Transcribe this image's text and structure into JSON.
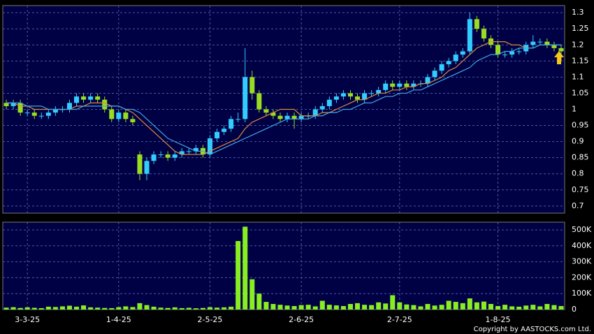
{
  "chart_data": {
    "type": "candlestick",
    "up_color": "#33ccff",
    "down_color": "#99dd22",
    "grid": true,
    "x": [
      null,
      null,
      null,
      "3-3-25",
      null,
      null,
      null,
      null,
      null,
      null,
      null,
      null,
      null,
      null,
      null,
      null,
      "1-4-25",
      null,
      null,
      null,
      null,
      null,
      null,
      null,
      null,
      null,
      null,
      null,
      null,
      "2-5-25",
      null,
      null,
      null,
      null,
      null,
      null,
      null,
      null,
      null,
      null,
      null,
      null,
      "2-6-25",
      null,
      null,
      null,
      null,
      null,
      null,
      null,
      null,
      null,
      null,
      null,
      null,
      null,
      "2-7-25",
      null,
      null,
      null,
      null,
      null,
      null,
      null,
      null,
      null,
      null,
      null,
      null,
      null,
      "1-8-25",
      null,
      null,
      null,
      null,
      null,
      null,
      null,
      null,
      null
    ],
    "open": [
      1.02,
      1.01,
      1.02,
      0.99,
      0.99,
      0.98,
      0.98,
      0.99,
      1.0,
      1.0,
      1.02,
      1.04,
      1.03,
      1.04,
      1.03,
      1.0,
      0.97,
      0.99,
      0.97,
      0.86,
      0.8,
      0.84,
      0.86,
      0.86,
      0.85,
      0.86,
      0.87,
      0.87,
      0.88,
      0.86,
      0.91,
      0.93,
      0.94,
      0.97,
      0.97,
      1.1,
      1.05,
      1.0,
      0.99,
      0.98,
      0.97,
      0.98,
      0.97,
      0.98,
      0.98,
      1.0,
      1.01,
      1.03,
      1.04,
      1.05,
      1.04,
      1.03,
      1.05,
      1.05,
      1.06,
      1.08,
      1.07,
      1.08,
      1.07,
      1.08,
      1.08,
      1.1,
      1.12,
      1.14,
      1.15,
      1.17,
      1.18,
      1.28,
      1.25,
      1.22,
      1.2,
      1.17,
      1.17,
      1.18,
      1.18,
      1.2,
      1.21,
      1.21,
      1.2,
      1.19
    ],
    "high": [
      1.03,
      1.03,
      1.03,
      1.0,
      1.0,
      0.99,
      1.0,
      1.01,
      1.01,
      1.03,
      1.05,
      1.05,
      1.05,
      1.05,
      1.04,
      1.01,
      1.0,
      1.0,
      0.98,
      0.87,
      0.85,
      0.87,
      0.87,
      0.87,
      0.87,
      0.88,
      0.88,
      0.89,
      0.89,
      0.92,
      0.94,
      0.95,
      0.98,
      0.99,
      1.19,
      1.12,
      1.06,
      1.01,
      1.0,
      0.99,
      0.99,
      0.99,
      0.99,
      0.99,
      1.01,
      1.02,
      1.04,
      1.05,
      1.06,
      1.06,
      1.05,
      1.06,
      1.06,
      1.07,
      1.09,
      1.09,
      1.09,
      1.09,
      1.09,
      1.09,
      1.11,
      1.13,
      1.15,
      1.16,
      1.18,
      1.19,
      1.3,
      1.29,
      1.26,
      1.23,
      1.21,
      1.18,
      1.19,
      1.19,
      1.21,
      1.23,
      1.22,
      1.22,
      1.21,
      1.2
    ],
    "low": [
      1.0,
      1.0,
      0.98,
      0.98,
      0.97,
      0.97,
      0.97,
      0.98,
      0.99,
      0.99,
      1.01,
      1.02,
      1.02,
      1.02,
      0.99,
      0.96,
      0.96,
      0.96,
      0.95,
      0.78,
      0.78,
      0.83,
      0.85,
      0.84,
      0.84,
      0.85,
      0.86,
      0.86,
      0.85,
      0.85,
      0.9,
      0.92,
      0.93,
      0.96,
      0.96,
      1.03,
      0.99,
      0.98,
      0.97,
      0.96,
      0.96,
      0.94,
      0.96,
      0.97,
      0.97,
      0.99,
      1.0,
      1.02,
      1.03,
      1.03,
      1.02,
      1.02,
      1.04,
      1.04,
      1.05,
      1.06,
      1.06,
      1.06,
      1.06,
      1.07,
      1.07,
      1.09,
      1.11,
      1.13,
      1.14,
      1.16,
      1.17,
      1.24,
      1.21,
      1.19,
      1.16,
      1.16,
      1.16,
      1.17,
      1.17,
      1.19,
      1.2,
      1.19,
      1.18,
      1.15
    ],
    "close": [
      1.01,
      1.02,
      0.99,
      0.99,
      0.98,
      0.98,
      0.99,
      1.0,
      1.0,
      1.02,
      1.04,
      1.03,
      1.04,
      1.03,
      1.0,
      0.97,
      0.99,
      0.97,
      0.96,
      0.8,
      0.84,
      0.86,
      0.86,
      0.85,
      0.86,
      0.87,
      0.87,
      0.88,
      0.86,
      0.91,
      0.93,
      0.94,
      0.97,
      0.97,
      1.1,
      1.05,
      1.0,
      0.99,
      0.98,
      0.97,
      0.98,
      0.97,
      0.98,
      0.98,
      1.0,
      1.01,
      1.03,
      1.04,
      1.05,
      1.04,
      1.03,
      1.05,
      1.05,
      1.06,
      1.08,
      1.07,
      1.08,
      1.07,
      1.08,
      1.08,
      1.1,
      1.12,
      1.14,
      1.15,
      1.17,
      1.18,
      1.28,
      1.25,
      1.22,
      1.2,
      1.17,
      1.17,
      1.18,
      1.18,
      1.2,
      1.21,
      1.21,
      1.2,
      1.19,
      1.18
    ],
    "lines": [
      {
        "color": "#e08a3c",
        "values": [
          1.02,
          1.02,
          1.01,
          1.01,
          1.0,
          1.0,
          1.0,
          1.0,
          1.0,
          1.0,
          1.01,
          1.01,
          1.02,
          1.02,
          1.02,
          1.01,
          1.01,
          1.0,
          0.99,
          0.97,
          0.95,
          0.93,
          0.91,
          0.89,
          0.87,
          0.86,
          0.86,
          0.86,
          0.86,
          0.87,
          0.88,
          0.89,
          0.9,
          0.91,
          0.94,
          0.96,
          0.97,
          0.98,
          0.99,
          1.0,
          1.0,
          1.0,
          0.98,
          0.98,
          0.98,
          0.99,
          0.99,
          1.0,
          1.01,
          1.02,
          1.03,
          1.03,
          1.04,
          1.05,
          1.05,
          1.06,
          1.06,
          1.07,
          1.07,
          1.08,
          1.08,
          1.09,
          1.1,
          1.12,
          1.13,
          1.15,
          1.17,
          1.19,
          1.2,
          1.21,
          1.21,
          1.21,
          1.2,
          1.2,
          1.19,
          1.19,
          1.2,
          1.2,
          1.2,
          1.2
        ]
      },
      {
        "color": "#3fa9e6",
        "values": [
          1.02,
          1.02,
          1.02,
          1.01,
          1.01,
          1.01,
          1.0,
          1.0,
          1.0,
          1.0,
          1.0,
          1.01,
          1.01,
          1.01,
          1.01,
          1.01,
          1.01,
          1.0,
          1.0,
          0.99,
          0.97,
          0.95,
          0.93,
          0.91,
          0.9,
          0.89,
          0.88,
          0.87,
          0.87,
          0.86,
          0.87,
          0.88,
          0.89,
          0.9,
          0.91,
          0.92,
          0.93,
          0.94,
          0.95,
          0.96,
          0.97,
          0.97,
          0.97,
          0.97,
          0.98,
          0.98,
          0.99,
          0.99,
          1.0,
          1.0,
          1.01,
          1.02,
          1.02,
          1.03,
          1.04,
          1.04,
          1.05,
          1.05,
          1.06,
          1.06,
          1.07,
          1.08,
          1.09,
          1.1,
          1.11,
          1.12,
          1.13,
          1.15,
          1.16,
          1.17,
          1.17,
          1.18,
          1.18,
          1.19,
          1.19,
          1.19,
          1.2,
          1.2,
          1.2,
          1.2
        ]
      }
    ],
    "ylim": [
      0.678,
      1.322
    ],
    "yticks": [
      0.7,
      0.75,
      0.8,
      0.85,
      0.9,
      0.95,
      1,
      1.05,
      1.1,
      1.15,
      1.2,
      1.25,
      1.3
    ],
    "volume": {
      "color": "#88ee22",
      "values": [
        12000,
        15000,
        10000,
        14000,
        11000,
        9000,
        18000,
        16000,
        20000,
        24000,
        18000,
        26000,
        14000,
        12000,
        10000,
        9000,
        15000,
        20000,
        16000,
        40000,
        28000,
        18000,
        12000,
        10000,
        14000,
        9000,
        11000,
        8000,
        10000,
        15000,
        12000,
        14000,
        18000,
        430000,
        520000,
        190000,
        100000,
        48000,
        35000,
        30000,
        25000,
        22000,
        28000,
        30000,
        20000,
        55000,
        30000,
        26000,
        22000,
        35000,
        40000,
        30000,
        28000,
        45000,
        38000,
        90000,
        45000,
        32000,
        28000,
        20000,
        35000,
        25000,
        30000,
        55000,
        48000,
        40000,
        70000,
        45000,
        50000,
        35000,
        22000,
        30000,
        20000,
        18000,
        25000,
        30000,
        20000,
        35000,
        28000,
        22000
      ],
      "ylim": [
        0,
        548000
      ],
      "yticks": [
        0,
        {
          "value": 100000,
          "label": "100K"
        },
        {
          "value": 200000,
          "label": "200K"
        },
        {
          "value": 300000,
          "label": "300K"
        },
        {
          "value": 400000,
          "label": "400K"
        },
        {
          "value": 500000,
          "label": "500K"
        }
      ]
    },
    "copyright": "Copyright by AASTOCKS.com Ltd."
  }
}
